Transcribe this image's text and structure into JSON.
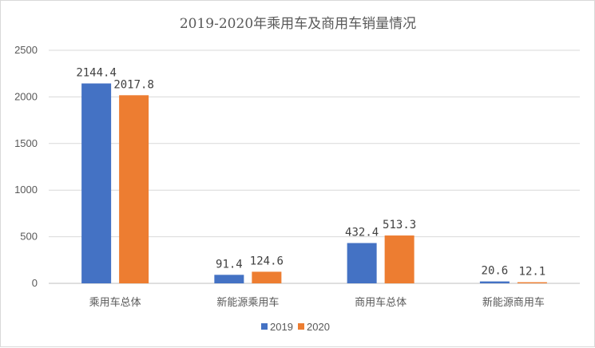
{
  "chart_data": {
    "type": "bar",
    "title": "2019-2020年乘用车及商用车销量情况",
    "categories": [
      "乘用车总体",
      "新能源乘用车",
      "商用车总体",
      "新能源商用车"
    ],
    "series": [
      {
        "name": "2019",
        "color": "#4472c4",
        "values": [
          2144.4,
          91.4,
          432.4,
          20.6
        ],
        "labels": [
          "2144.4",
          "91.4",
          "432.4",
          "20.6"
        ]
      },
      {
        "name": "2020",
        "color": "#ed7d31",
        "values": [
          2017.8,
          124.6,
          513.3,
          12.1
        ],
        "labels": [
          "2017.8",
          "124.6",
          "513.3",
          "12.1"
        ]
      }
    ],
    "ylim": [
      0,
      2500
    ],
    "yticks": [
      0,
      500,
      1000,
      1500,
      2000,
      2500
    ],
    "ytick_labels": [
      "0",
      "500",
      "1000",
      "1500",
      "2000",
      "2500"
    ],
    "grid": true,
    "legend_position": "bottom"
  }
}
